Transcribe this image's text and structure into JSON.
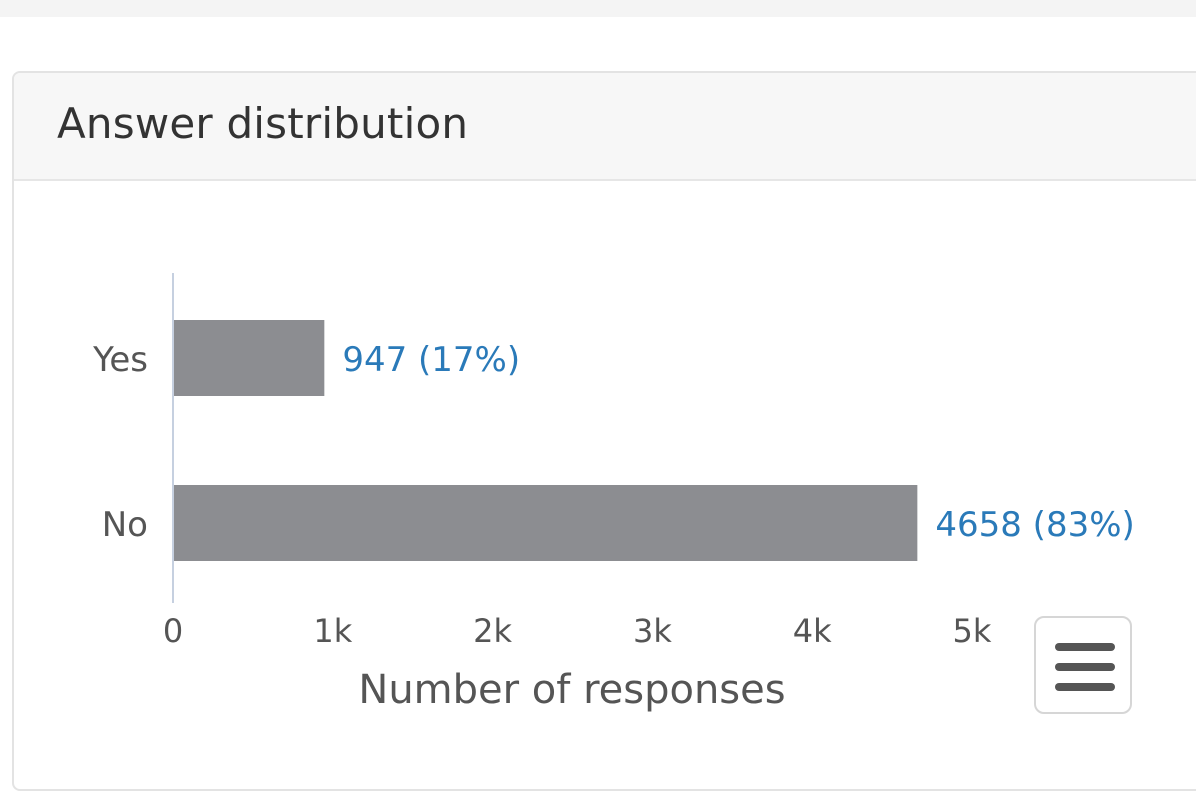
{
  "panel": {
    "title": "Answer distribution"
  },
  "chart_data": {
    "type": "bar",
    "orientation": "horizontal",
    "categories": [
      "Yes",
      "No"
    ],
    "values": [
      947,
      4658
    ],
    "data_labels": [
      "947 (17%)",
      "4658 (83%)"
    ],
    "xlabel": "Number of responses",
    "xlim": [
      0,
      5000
    ],
    "xticks": [
      0,
      1000,
      2000,
      3000,
      4000,
      5000
    ],
    "xtick_labels": [
      "0",
      "1k",
      "2k",
      "3k",
      "4k",
      "5k"
    ],
    "grid": false,
    "legend": "none",
    "colors": {
      "bar": "#8c8d91",
      "data_label": "#2a7ab9",
      "axis_line": "#c6d0e0",
      "text": "#555555"
    }
  },
  "menu": {
    "icon": "hamburger-menu-icon"
  }
}
